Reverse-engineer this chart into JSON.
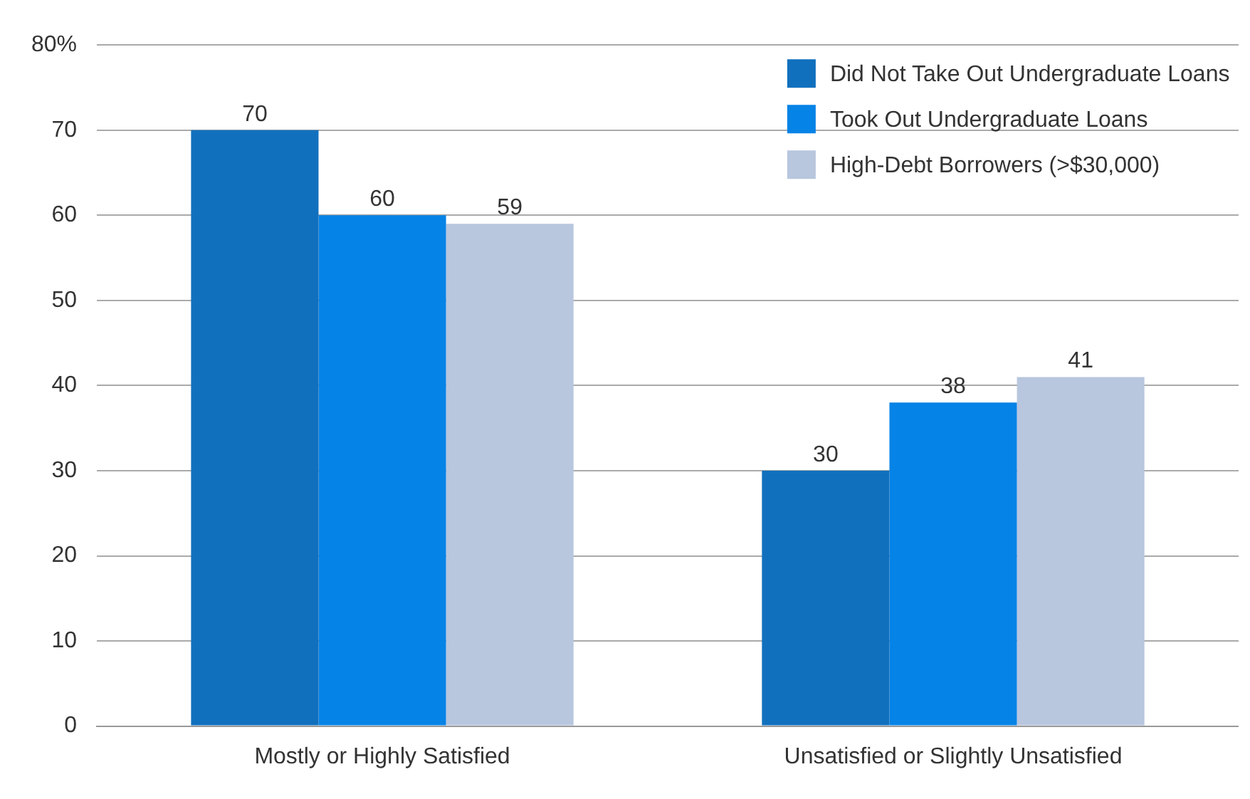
{
  "chart_data": {
    "type": "bar",
    "categories": [
      "Mostly or Highly Satisfied",
      "Unsatisfied or Slightly Unsatisfied"
    ],
    "series": [
      {
        "name": "Did Not Take Out Undergraduate Loans",
        "color": "#1170bd",
        "values": [
          70,
          30
        ]
      },
      {
        "name": "Took Out Undergraduate Loans",
        "color": "#0683e6",
        "values": [
          60,
          38
        ]
      },
      {
        "name": "High-Debt Borrowers (>$30,000)",
        "color": "#b8c6de",
        "values": [
          59,
          41
        ]
      }
    ],
    "ylim": [
      0,
      80
    ],
    "yticks": [
      0,
      10,
      20,
      30,
      40,
      50,
      60,
      70,
      {
        "value": 80,
        "label": "80%"
      }
    ],
    "grid": "y",
    "legend": "top right",
    "data_labels": true
  }
}
